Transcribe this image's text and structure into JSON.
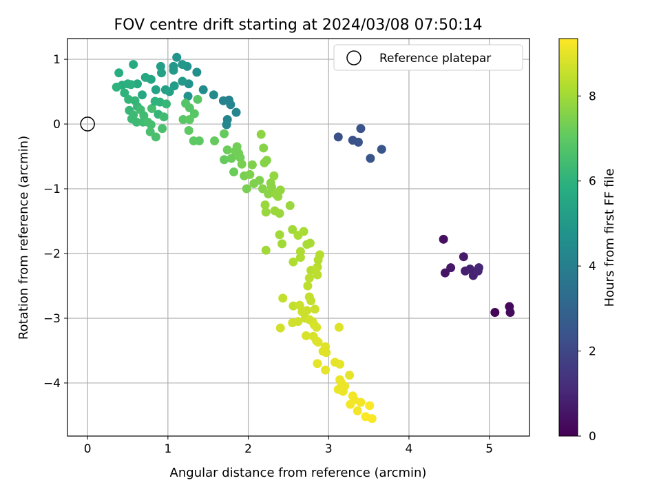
{
  "chart_data": {
    "type": "scatter",
    "title": "FOV centre drift starting at 2024/03/08 07:50:14",
    "xlabel": "Angular distance from reference (arcmin)",
    "ylabel": "Rotation from reference (arcmin)",
    "xlim": [
      -0.25,
      5.5
    ],
    "ylim": [
      -4.82,
      1.32
    ],
    "xticks": [
      0,
      1,
      2,
      3,
      4,
      5
    ],
    "yticks": [
      1,
      0,
      -1,
      -2,
      -3,
      -4
    ],
    "grid": true,
    "legend": {
      "placement": "top-right",
      "entries": [
        "Reference platepar"
      ]
    },
    "reference_point": {
      "x": 0,
      "y": 0
    },
    "colorbar": {
      "label": "Hours from first FF file",
      "range": [
        0,
        9.35
      ],
      "ticks": [
        0,
        2,
        4,
        6,
        8
      ],
      "colormap": "viridis"
    },
    "points": [
      {
        "x": 4.43,
        "y": -1.78,
        "h": 0.4
      },
      {
        "x": 4.45,
        "y": -2.3,
        "h": 0.5
      },
      {
        "x": 4.52,
        "y": -2.22,
        "h": 0.6
      },
      {
        "x": 4.68,
        "y": -2.05,
        "h": 0.7
      },
      {
        "x": 4.7,
        "y": -2.27,
        "h": 0.8
      },
      {
        "x": 4.76,
        "y": -2.24,
        "h": 0.9
      },
      {
        "x": 4.8,
        "y": -2.34,
        "h": 0.9
      },
      {
        "x": 4.86,
        "y": -2.27,
        "h": 1.0
      },
      {
        "x": 4.87,
        "y": -2.22,
        "h": 1.0
      },
      {
        "x": 5.07,
        "y": -2.91,
        "h": 0.1
      },
      {
        "x": 5.25,
        "y": -2.82,
        "h": 0.2
      },
      {
        "x": 5.26,
        "y": -2.91,
        "h": 0.3
      },
      {
        "x": 3.12,
        "y": -0.2,
        "h": 2.3
      },
      {
        "x": 3.3,
        "y": -0.25,
        "h": 2.3
      },
      {
        "x": 3.37,
        "y": -0.28,
        "h": 2.4
      },
      {
        "x": 3.4,
        "y": -0.07,
        "h": 2.4
      },
      {
        "x": 3.52,
        "y": -0.53,
        "h": 2.5
      },
      {
        "x": 3.66,
        "y": -0.39,
        "h": 2.5
      },
      {
        "x": 1.69,
        "y": 0.36,
        "h": 4.1
      },
      {
        "x": 1.76,
        "y": 0.37,
        "h": 4.1
      },
      {
        "x": 1.78,
        "y": 0.3,
        "h": 4.2
      },
      {
        "x": 1.74,
        "y": 0.07,
        "h": 4.2
      },
      {
        "x": 1.73,
        "y": -0.01,
        "h": 4.3
      },
      {
        "x": 1.85,
        "y": 0.18,
        "h": 4.3
      },
      {
        "x": 1.57,
        "y": 0.45,
        "h": 4.4
      },
      {
        "x": 1.44,
        "y": 0.53,
        "h": 4.5
      },
      {
        "x": 1.36,
        "y": 0.8,
        "h": 4.6
      },
      {
        "x": 1.24,
        "y": 0.89,
        "h": 4.7
      },
      {
        "x": 1.26,
        "y": 0.62,
        "h": 4.7
      },
      {
        "x": 1.25,
        "y": 0.43,
        "h": 4.8
      },
      {
        "x": 1.11,
        "y": 1.03,
        "h": 4.8
      },
      {
        "x": 1.18,
        "y": 0.92,
        "h": 4.9
      },
      {
        "x": 1.07,
        "y": 0.89,
        "h": 4.9
      },
      {
        "x": 1.07,
        "y": 0.83,
        "h": 5.0
      },
      {
        "x": 1.18,
        "y": 0.66,
        "h": 5.0
      },
      {
        "x": 1.08,
        "y": 0.59,
        "h": 5.1
      },
      {
        "x": 0.97,
        "y": 0.53,
        "h": 5.2
      },
      {
        "x": 0.91,
        "y": 0.89,
        "h": 5.2
      },
      {
        "x": 0.92,
        "y": 0.79,
        "h": 5.3
      },
      {
        "x": 1.02,
        "y": 0.5,
        "h": 5.3
      },
      {
        "x": 0.85,
        "y": 0.53,
        "h": 5.4
      },
      {
        "x": 0.79,
        "y": 0.69,
        "h": 5.5
      },
      {
        "x": 0.72,
        "y": 0.72,
        "h": 5.6
      },
      {
        "x": 0.68,
        "y": 0.45,
        "h": 5.6
      },
      {
        "x": 0.62,
        "y": 0.62,
        "h": 5.7
      },
      {
        "x": 0.57,
        "y": 0.92,
        "h": 5.7
      },
      {
        "x": 0.39,
        "y": 0.79,
        "h": 5.8
      },
      {
        "x": 0.43,
        "y": 0.6,
        "h": 5.8
      },
      {
        "x": 0.5,
        "y": 0.62,
        "h": 5.9
      },
      {
        "x": 0.54,
        "y": 0.61,
        "h": 5.9
      },
      {
        "x": 0.46,
        "y": 0.48,
        "h": 6.0
      },
      {
        "x": 0.36,
        "y": 0.57,
        "h": 6.0
      },
      {
        "x": 0.51,
        "y": 0.38,
        "h": 6.1
      },
      {
        "x": 0.59,
        "y": 0.36,
        "h": 6.1
      },
      {
        "x": 0.62,
        "y": 0.27,
        "h": 6.2
      },
      {
        "x": 0.52,
        "y": 0.21,
        "h": 6.2
      },
      {
        "x": 0.57,
        "y": 0.14,
        "h": 6.3
      },
      {
        "x": 0.55,
        "y": 0.08,
        "h": 6.3
      },
      {
        "x": 0.61,
        "y": 0.03,
        "h": 6.3
      },
      {
        "x": 0.66,
        "y": 0.22,
        "h": 6.4
      },
      {
        "x": 0.7,
        "y": 0.13,
        "h": 6.4
      },
      {
        "x": 0.69,
        "y": 0.03,
        "h": 6.4
      },
      {
        "x": 0.75,
        "y": 0.03,
        "h": 6.5
      },
      {
        "x": 0.8,
        "y": 0.24,
        "h": 6.5
      },
      {
        "x": 0.84,
        "y": 0.35,
        "h": 6.0
      },
      {
        "x": 0.9,
        "y": 0.34,
        "h": 6.0
      },
      {
        "x": 0.88,
        "y": 0.15,
        "h": 6.1
      },
      {
        "x": 0.79,
        "y": -0.01,
        "h": 6.5
      },
      {
        "x": 0.78,
        "y": -0.12,
        "h": 6.6
      },
      {
        "x": 0.85,
        "y": -0.2,
        "h": 6.6
      },
      {
        "x": 0.93,
        "y": -0.07,
        "h": 6.6
      },
      {
        "x": 0.95,
        "y": 0.11,
        "h": 6.4
      },
      {
        "x": 0.98,
        "y": 0.31,
        "h": 6.2
      },
      {
        "x": 1.22,
        "y": 0.32,
        "h": 6.8
      },
      {
        "x": 1.27,
        "y": 0.25,
        "h": 6.8
      },
      {
        "x": 1.37,
        "y": 0.38,
        "h": 6.9
      },
      {
        "x": 1.33,
        "y": 0.16,
        "h": 6.9
      },
      {
        "x": 1.19,
        "y": 0.07,
        "h": 6.9
      },
      {
        "x": 1.27,
        "y": 0.07,
        "h": 7.0
      },
      {
        "x": 1.26,
        "y": -0.1,
        "h": 7.0
      },
      {
        "x": 1.32,
        "y": -0.26,
        "h": 7.0
      },
      {
        "x": 1.39,
        "y": -0.26,
        "h": 7.0
      },
      {
        "x": 1.58,
        "y": -0.26,
        "h": 7.1
      },
      {
        "x": 1.7,
        "y": -0.15,
        "h": 7.1
      },
      {
        "x": 1.7,
        "y": -0.55,
        "h": 7.1
      },
      {
        "x": 1.74,
        "y": -0.4,
        "h": 7.2
      },
      {
        "x": 1.79,
        "y": -0.53,
        "h": 7.2
      },
      {
        "x": 1.82,
        "y": -0.74,
        "h": 7.2
      },
      {
        "x": 1.84,
        "y": -0.42,
        "h": 7.3
      },
      {
        "x": 1.86,
        "y": -0.35,
        "h": 7.3
      },
      {
        "x": 1.88,
        "y": -0.45,
        "h": 7.3
      },
      {
        "x": 1.9,
        "y": -0.52,
        "h": 7.3
      },
      {
        "x": 1.92,
        "y": -0.62,
        "h": 7.4
      },
      {
        "x": 1.95,
        "y": -0.8,
        "h": 7.4
      },
      {
        "x": 1.98,
        "y": -1.0,
        "h": 7.4
      },
      {
        "x": 2.02,
        "y": -0.78,
        "h": 7.5
      },
      {
        "x": 2.05,
        "y": -0.63,
        "h": 7.5
      },
      {
        "x": 2.07,
        "y": -0.92,
        "h": 7.5
      },
      {
        "x": 2.14,
        "y": -0.87,
        "h": 7.5
      },
      {
        "x": 2.18,
        "y": -1.0,
        "h": 7.6
      },
      {
        "x": 2.2,
        "y": -0.6,
        "h": 7.6
      },
      {
        "x": 2.23,
        "y": -0.56,
        "h": 7.6
      },
      {
        "x": 2.19,
        "y": -0.37,
        "h": 7.6
      },
      {
        "x": 2.16,
        "y": -0.16,
        "h": 7.7
      },
      {
        "x": 2.28,
        "y": -0.91,
        "h": 7.7
      },
      {
        "x": 2.25,
        "y": -1.08,
        "h": 7.7
      },
      {
        "x": 2.29,
        "y": -0.97,
        "h": 7.7
      },
      {
        "x": 2.32,
        "y": -0.8,
        "h": 7.8
      },
      {
        "x": 2.34,
        "y": -1.08,
        "h": 7.8
      },
      {
        "x": 2.37,
        "y": -1.12,
        "h": 7.8
      },
      {
        "x": 2.4,
        "y": -1.02,
        "h": 7.8
      },
      {
        "x": 2.21,
        "y": -1.25,
        "h": 7.9
      },
      {
        "x": 2.22,
        "y": -1.36,
        "h": 7.9
      },
      {
        "x": 2.33,
        "y": -1.34,
        "h": 7.9
      },
      {
        "x": 2.39,
        "y": -1.38,
        "h": 7.9
      },
      {
        "x": 2.52,
        "y": -1.26,
        "h": 7.9
      },
      {
        "x": 2.55,
        "y": -1.63,
        "h": 8.0
      },
      {
        "x": 2.39,
        "y": -1.71,
        "h": 8.0
      },
      {
        "x": 2.42,
        "y": -1.85,
        "h": 8.0
      },
      {
        "x": 2.22,
        "y": -1.95,
        "h": 8.0
      },
      {
        "x": 2.62,
        "y": -1.72,
        "h": 8.1
      },
      {
        "x": 2.69,
        "y": -1.66,
        "h": 8.1
      },
      {
        "x": 2.73,
        "y": -1.86,
        "h": 8.1
      },
      {
        "x": 2.77,
        "y": -1.84,
        "h": 8.1
      },
      {
        "x": 2.65,
        "y": -1.97,
        "h": 8.2
      },
      {
        "x": 2.65,
        "y": -2.06,
        "h": 8.2
      },
      {
        "x": 2.56,
        "y": -2.13,
        "h": 8.2
      },
      {
        "x": 2.89,
        "y": -2.02,
        "h": 8.3
      },
      {
        "x": 2.87,
        "y": -2.1,
        "h": 8.3
      },
      {
        "x": 2.86,
        "y": -2.21,
        "h": 8.3
      },
      {
        "x": 2.78,
        "y": -2.26,
        "h": 8.3
      },
      {
        "x": 2.84,
        "y": -2.25,
        "h": 8.4
      },
      {
        "x": 2.86,
        "y": -2.33,
        "h": 8.4
      },
      {
        "x": 2.76,
        "y": -2.38,
        "h": 8.4
      },
      {
        "x": 2.74,
        "y": -2.5,
        "h": 8.4
      },
      {
        "x": 2.43,
        "y": -2.69,
        "h": 8.5
      },
      {
        "x": 2.76,
        "y": -2.67,
        "h": 8.5
      },
      {
        "x": 2.78,
        "y": -2.73,
        "h": 8.5
      },
      {
        "x": 2.56,
        "y": -2.81,
        "h": 8.5
      },
      {
        "x": 2.64,
        "y": -2.8,
        "h": 8.6
      },
      {
        "x": 2.67,
        "y": -2.9,
        "h": 8.6
      },
      {
        "x": 2.73,
        "y": -2.88,
        "h": 8.6
      },
      {
        "x": 2.83,
        "y": -2.86,
        "h": 8.6
      },
      {
        "x": 2.71,
        "y": -3.0,
        "h": 8.6
      },
      {
        "x": 2.76,
        "y": -3.02,
        "h": 8.7
      },
      {
        "x": 2.8,
        "y": -3.05,
        "h": 8.7
      },
      {
        "x": 2.62,
        "y": -3.05,
        "h": 8.7
      },
      {
        "x": 2.55,
        "y": -3.07,
        "h": 8.7
      },
      {
        "x": 2.4,
        "y": -3.15,
        "h": 8.7
      },
      {
        "x": 2.82,
        "y": -3.1,
        "h": 8.8
      },
      {
        "x": 2.85,
        "y": -3.14,
        "h": 8.8
      },
      {
        "x": 2.72,
        "y": -3.27,
        "h": 8.8
      },
      {
        "x": 2.81,
        "y": -3.28,
        "h": 8.8
      },
      {
        "x": 2.85,
        "y": -3.35,
        "h": 8.8
      },
      {
        "x": 2.87,
        "y": -3.37,
        "h": 8.9
      },
      {
        "x": 2.96,
        "y": -3.44,
        "h": 8.9
      },
      {
        "x": 2.93,
        "y": -3.51,
        "h": 8.9
      },
      {
        "x": 2.97,
        "y": -3.53,
        "h": 8.9
      },
      {
        "x": 3.13,
        "y": -3.14,
        "h": 8.9
      },
      {
        "x": 2.86,
        "y": -3.7,
        "h": 9.0
      },
      {
        "x": 2.96,
        "y": -3.8,
        "h": 9.0
      },
      {
        "x": 3.08,
        "y": -3.68,
        "h": 9.0
      },
      {
        "x": 3.14,
        "y": -3.71,
        "h": 9.0
      },
      {
        "x": 3.26,
        "y": -3.88,
        "h": 9.0
      },
      {
        "x": 3.14,
        "y": -3.95,
        "h": 9.1
      },
      {
        "x": 3.16,
        "y": -4.0,
        "h": 9.1
      },
      {
        "x": 3.2,
        "y": -4.05,
        "h": 9.1
      },
      {
        "x": 3.12,
        "y": -4.1,
        "h": 9.1
      },
      {
        "x": 3.18,
        "y": -4.13,
        "h": 9.1
      },
      {
        "x": 3.3,
        "y": -4.2,
        "h": 9.2
      },
      {
        "x": 3.32,
        "y": -4.26,
        "h": 9.2
      },
      {
        "x": 3.27,
        "y": -4.33,
        "h": 9.2
      },
      {
        "x": 3.4,
        "y": -4.3,
        "h": 9.2
      },
      {
        "x": 3.36,
        "y": -4.43,
        "h": 9.2
      },
      {
        "x": 3.51,
        "y": -4.35,
        "h": 9.3
      },
      {
        "x": 3.46,
        "y": -4.52,
        "h": 9.3
      },
      {
        "x": 3.54,
        "y": -4.55,
        "h": 9.3
      }
    ]
  }
}
